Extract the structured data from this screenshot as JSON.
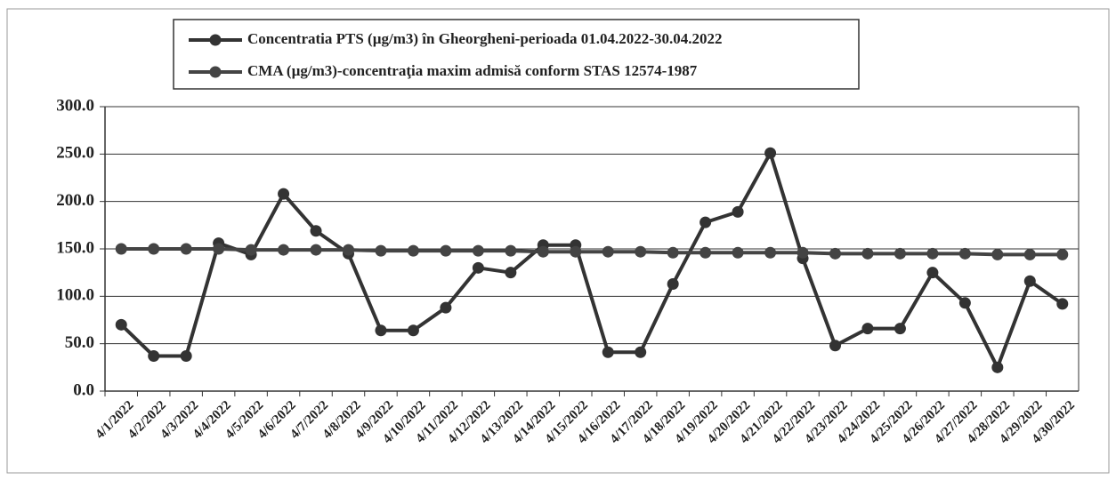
{
  "chart_data": {
    "type": "line",
    "categories": [
      "4/1/2022",
      "4/2/2022",
      "4/3/2022",
      "4/4/2022",
      "4/5/2022",
      "4/6/2022",
      "4/7/2022",
      "4/8/2022",
      "4/9/2022",
      "4/10/2022",
      "4/11/2022",
      "4/12/2022",
      "4/13/2022",
      "4/14/2022",
      "4/15/2022",
      "4/16/2022",
      "4/17/2022",
      "4/18/2022",
      "4/19/2022",
      "4/20/2022",
      "4/21/2022",
      "4/22/2022",
      "4/23/2022",
      "4/24/2022",
      "4/25/2022",
      "4/26/2022",
      "4/27/2022",
      "4/28/2022",
      "4/29/2022",
      "4/30/2022"
    ],
    "series": [
      {
        "name": "Concentratia PTS (µg/m3) în Gheorgheni-perioada 01.04.2022-30.04.2022",
        "color": "#333333",
        "values": [
          70,
          37,
          37,
          156,
          144,
          208,
          169,
          145,
          64,
          64,
          88,
          130,
          125,
          154,
          154,
          41,
          41,
          113,
          178,
          189,
          251,
          140,
          48,
          66,
          66,
          125,
          93,
          25,
          116,
          92
        ]
      },
      {
        "name": "CMA (µg/m3)-concentraţia maxim admisă conform STAS 12574-1987",
        "color": "#444444",
        "values": [
          150,
          150,
          150,
          150,
          149,
          149,
          149,
          149,
          148,
          148,
          148,
          148,
          148,
          147,
          147,
          147,
          147,
          146,
          146,
          146,
          146,
          146,
          145,
          145,
          145,
          145,
          145,
          144,
          144,
          144
        ]
      }
    ],
    "ylim": [
      0,
      300
    ],
    "yticks": [
      {
        "value": 0,
        "label": "0.0"
      },
      {
        "value": 50,
        "label": "50.0"
      },
      {
        "value": 100,
        "label": "100.0"
      },
      {
        "value": 150,
        "label": "150.0"
      },
      {
        "value": 200,
        "label": "200.0"
      },
      {
        "value": 250,
        "label": "250.0"
      },
      {
        "value": 300,
        "label": "300.0"
      }
    ],
    "grid": true
  }
}
